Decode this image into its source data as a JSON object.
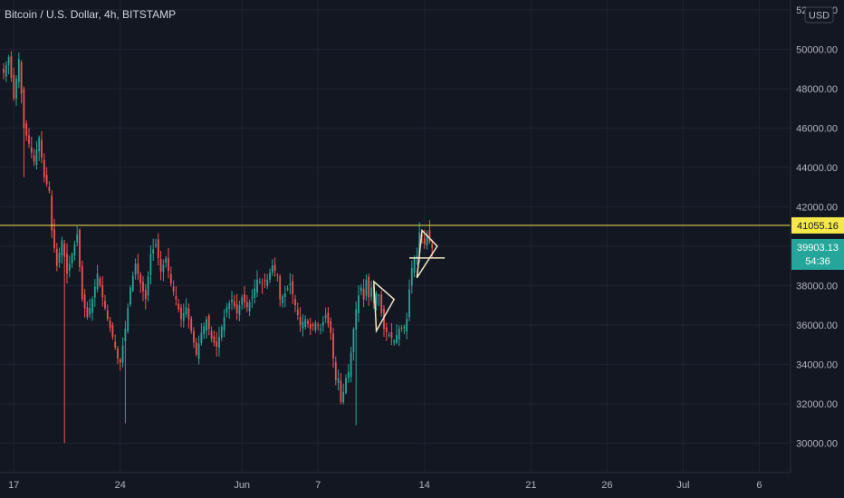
{
  "header": {
    "title": "Bitcoin / U.S. Dollar, 4h, BITSTAMP"
  },
  "axis": {
    "currency": "USD"
  },
  "colors": {
    "background": "#131722",
    "grid": "#1f2430",
    "up": "#26a69a",
    "down": "#ef5350",
    "level_line": "#f6e84a",
    "drawing": "#f2e6c8",
    "axis_text": "#b2b5be",
    "last_price_tag": "#26a69a"
  },
  "price_labels": {
    "level": "41055.16",
    "last": "39903.13",
    "countdown": "54:36"
  },
  "chart_data": {
    "type": "candlestick",
    "title": "Bitcoin / U.S. Dollar, 4h, BITSTAMP",
    "xlabel": "",
    "ylabel": "",
    "ylim": [
      28500,
      52500
    ],
    "y_ticks": [
      30000,
      32000,
      34000,
      36000,
      38000,
      40000,
      42000,
      44000,
      46000,
      48000,
      50000,
      52000
    ],
    "y_tick_labels": [
      "30000.00",
      "32000.00",
      "34000.00",
      "36000.00",
      "38000.00",
      "40000.00",
      "42000.00",
      "44000.00",
      "46000.00",
      "48000.00",
      "50000.00",
      "52000.00"
    ],
    "x_ticks": [
      {
        "label": "17",
        "bar": 4
      },
      {
        "label": "24",
        "bar": 46
      },
      {
        "label": "Jun",
        "bar": 94
      },
      {
        "label": "7",
        "bar": 124
      },
      {
        "label": "14",
        "bar": 166
      },
      {
        "label": "21",
        "bar": 208
      },
      {
        "label": "26",
        "bar": 238
      },
      {
        "label": "Jul",
        "bar": 268
      },
      {
        "label": "6",
        "bar": 298
      }
    ],
    "x_range_bars": [
      -2,
      307
    ],
    "grid": true,
    "horizontal_level": 41055.16,
    "last_price": 39903.13,
    "anchors": [
      [
        0,
        48800
      ],
      [
        2,
        49600
      ],
      [
        4,
        47500
      ],
      [
        6,
        49500
      ],
      [
        8,
        46000
      ],
      [
        10,
        45200
      ],
      [
        12,
        44300
      ],
      [
        14,
        45500
      ],
      [
        16,
        43500
      ],
      [
        18,
        42800
      ],
      [
        19,
        40800
      ],
      [
        21,
        39000
      ],
      [
        23,
        40300
      ],
      [
        25,
        38600
      ],
      [
        27,
        39600
      ],
      [
        29,
        40600
      ],
      [
        31,
        37300
      ],
      [
        33,
        36400
      ],
      [
        35,
        37300
      ],
      [
        37,
        38600
      ],
      [
        39,
        37400
      ],
      [
        41,
        36300
      ],
      [
        43,
        35400
      ],
      [
        45,
        34300
      ],
      [
        46,
        34100
      ],
      [
        48,
        35800
      ],
      [
        50,
        37900
      ],
      [
        52,
        39100
      ],
      [
        54,
        38100
      ],
      [
        56,
        37300
      ],
      [
        58,
        39600
      ],
      [
        60,
        40100
      ],
      [
        62,
        38700
      ],
      [
        64,
        39400
      ],
      [
        66,
        38100
      ],
      [
        68,
        37300
      ],
      [
        70,
        36300
      ],
      [
        72,
        36900
      ],
      [
        74,
        35700
      ],
      [
        76,
        34500
      ],
      [
        78,
        35600
      ],
      [
        80,
        36300
      ],
      [
        82,
        35300
      ],
      [
        84,
        34900
      ],
      [
        86,
        35900
      ],
      [
        88,
        36900
      ],
      [
        90,
        37300
      ],
      [
        92,
        36600
      ],
      [
        94,
        37400
      ],
      [
        96,
        36900
      ],
      [
        98,
        37400
      ],
      [
        100,
        38300
      ],
      [
        102,
        38100
      ],
      [
        104,
        38300
      ],
      [
        106,
        39000
      ],
      [
        108,
        38500
      ],
      [
        109,
        37300
      ],
      [
        111,
        37600
      ],
      [
        113,
        38100
      ],
      [
        115,
        37000
      ],
      [
        117,
        36000
      ],
      [
        119,
        36300
      ],
      [
        121,
        35800
      ],
      [
        123,
        36100
      ],
      [
        125,
        35800
      ],
      [
        127,
        36500
      ],
      [
        129,
        35600
      ],
      [
        130,
        34300
      ],
      [
        131,
        33200
      ],
      [
        132,
        33300
      ],
      [
        133,
        32100
      ],
      [
        134,
        32600
      ],
      [
        135,
        33300
      ],
      [
        136,
        33600
      ],
      [
        137,
        34600
      ],
      [
        138,
        35800
      ],
      [
        139,
        36800
      ],
      [
        140,
        37500
      ],
      [
        141,
        37900
      ],
      [
        142,
        37300
      ],
      [
        143,
        38300
      ],
      [
        144,
        37400
      ],
      [
        145,
        37900
      ],
      [
        146,
        37100
      ],
      [
        147,
        37600
      ],
      [
        148,
        37500
      ],
      [
        149,
        36600
      ],
      [
        150,
        35800
      ],
      [
        152,
        35500
      ],
      [
        154,
        35200
      ],
      [
        156,
        35800
      ],
      [
        158,
        35900
      ],
      [
        159,
        36300
      ],
      [
        160,
        37800
      ],
      [
        161,
        38900
      ],
      [
        162,
        39400
      ],
      [
        163,
        39500
      ],
      [
        164,
        40700
      ],
      [
        165,
        40500
      ],
      [
        166,
        40100
      ],
      [
        167,
        40600
      ],
      [
        168,
        40200
      ],
      [
        169,
        39900
      ]
    ],
    "drawings": [
      {
        "type": "triangle",
        "points": [
          [
            147,
            35700
          ],
          [
            146,
            38200
          ],
          [
            154,
            37300
          ]
        ]
      },
      {
        "type": "triangle",
        "points": [
          [
            163,
            38400
          ],
          [
            165,
            40800
          ],
          [
            171,
            40000
          ]
        ]
      },
      {
        "type": "hline_segment",
        "from_bar": 160,
        "to_bar": 174,
        "y": 39400
      }
    ]
  }
}
